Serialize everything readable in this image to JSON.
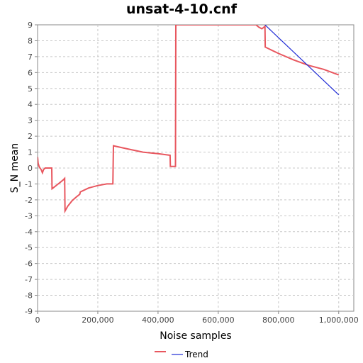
{
  "chart_data": {
    "type": "line",
    "title": "unsat-4-10.cnf",
    "xlabel": "Noise samples",
    "ylabel": "S_N mean",
    "xlim": [
      0,
      1050000
    ],
    "ylim": [
      -9,
      9
    ],
    "x_ticks": [
      0,
      200000,
      400000,
      600000,
      800000,
      1000000
    ],
    "x_tick_labels": [
      "0",
      "200,000",
      "400,000",
      "600,000",
      "800,000",
      "1,000,000"
    ],
    "y_ticks": [
      9,
      8,
      7,
      6,
      5,
      4,
      3,
      2,
      1,
      0,
      -1,
      -2,
      -3,
      -4,
      -5,
      -6,
      -7,
      -8,
      -9
    ],
    "grid": true,
    "legend_position": "bottom",
    "series": [
      {
        "name": "",
        "color": "#e8575f",
        "points": [
          [
            0,
            0.7
          ],
          [
            2000,
            0.3
          ],
          [
            5000,
            0.1
          ],
          [
            8000,
            0.0
          ],
          [
            12000,
            -0.1
          ],
          [
            16000,
            -0.3
          ],
          [
            20000,
            -0.1
          ],
          [
            25000,
            0.0
          ],
          [
            35000,
            0.0
          ],
          [
            47000,
            0.0
          ],
          [
            48000,
            -1.3
          ],
          [
            55000,
            -1.2
          ],
          [
            65000,
            -1.05
          ],
          [
            75000,
            -0.9
          ],
          [
            85000,
            -0.75
          ],
          [
            90000,
            -0.65
          ],
          [
            91000,
            -2.7
          ],
          [
            100000,
            -2.4
          ],
          [
            115000,
            -2.05
          ],
          [
            130000,
            -1.8
          ],
          [
            140000,
            -1.65
          ],
          [
            142000,
            -1.5
          ],
          [
            170000,
            -1.25
          ],
          [
            200000,
            -1.1
          ],
          [
            230000,
            -1.0
          ],
          [
            250000,
            -1.0
          ],
          [
            252000,
            1.4
          ],
          [
            300000,
            1.2
          ],
          [
            350000,
            1.0
          ],
          [
            400000,
            0.9
          ],
          [
            440000,
            0.8
          ],
          [
            441000,
            0.1
          ],
          [
            458000,
            0.1
          ],
          [
            459000,
            9.0
          ],
          [
            725000,
            9.0
          ],
          [
            735000,
            8.85
          ],
          [
            745000,
            8.75
          ],
          [
            755000,
            8.9
          ],
          [
            756000,
            7.6
          ],
          [
            800000,
            7.2
          ],
          [
            850000,
            6.8
          ],
          [
            900000,
            6.45
          ],
          [
            950000,
            6.2
          ],
          [
            1000000,
            5.85
          ]
        ]
      },
      {
        "name": "Trend",
        "color": "#1f2bd6",
        "points": [
          [
            755000,
            9.0
          ],
          [
            1000000,
            4.6
          ]
        ]
      }
    ]
  }
}
